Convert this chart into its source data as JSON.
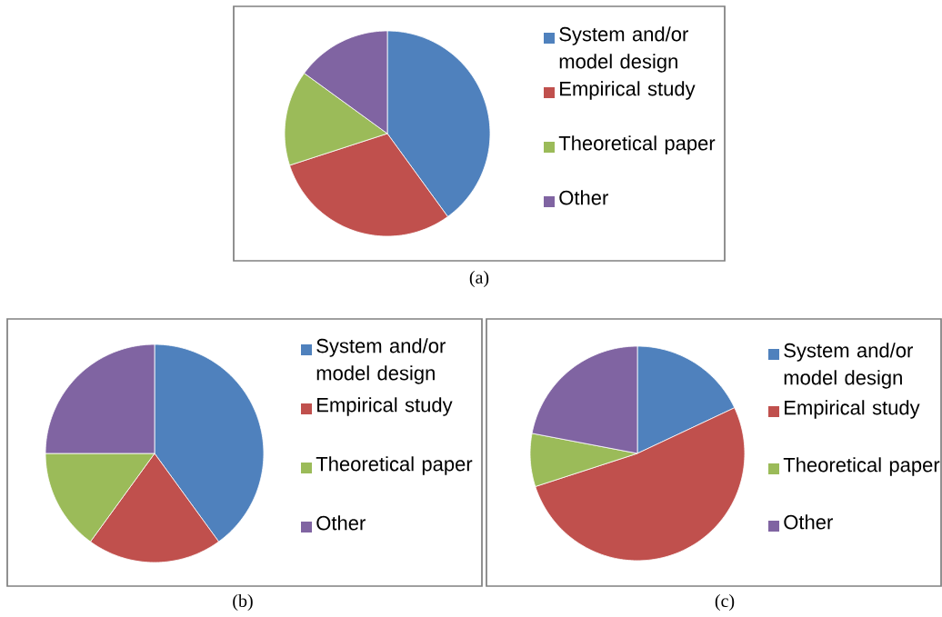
{
  "chart_data": [
    {
      "type": "pie",
      "categories": [
        "System and/or model design",
        "Empirical study",
        "Theoretical paper",
        "Other"
      ],
      "values": [
        40,
        30,
        15,
        15
      ],
      "colors": [
        "#4f81bd",
        "#c0504d",
        "#9bbb59",
        "#8064a2"
      ],
      "legend": "right",
      "annotations": [
        "(a)"
      ]
    },
    {
      "type": "pie",
      "categories": [
        "System and/or model design",
        "Empirical study",
        "Theoretical paper",
        "Other"
      ],
      "values": [
        40,
        20,
        15,
        25
      ],
      "colors": [
        "#4f81bd",
        "#c0504d",
        "#9bbb59",
        "#8064a2"
      ],
      "legend": "right",
      "annotations": [
        "(b)"
      ]
    },
    {
      "type": "pie",
      "categories": [
        "System and/or model design",
        "Empirical study",
        "Theoretical paper",
        "Other"
      ],
      "values": [
        18,
        52,
        8,
        22
      ],
      "colors": [
        "#4f81bd",
        "#c0504d",
        "#9bbb59",
        "#8064a2"
      ],
      "legend": "right",
      "annotations": [
        "(c)"
      ]
    }
  ]
}
